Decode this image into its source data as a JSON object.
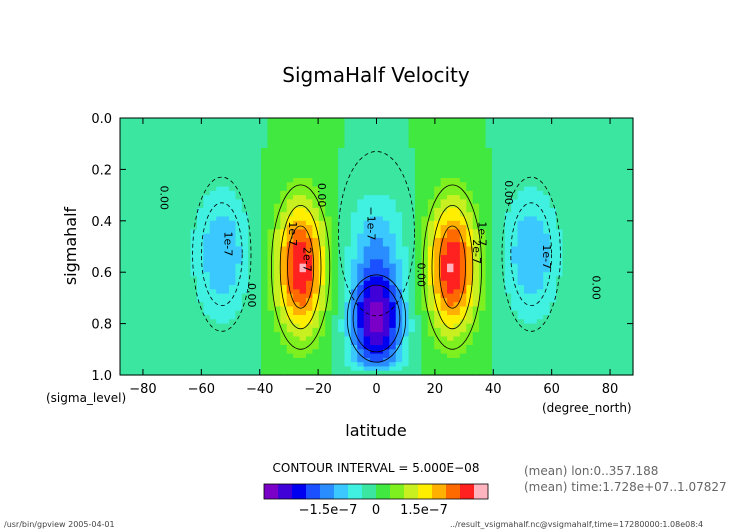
{
  "chart_data": {
    "type": "contour",
    "title": "SigmaHalf Velocity",
    "xlabel": "latitude",
    "ylabel": "sigmahalf",
    "x_unit": "(degree_north)",
    "y_unit": "(sigma_level)",
    "xlim": [
      -87.86,
      87.86
    ],
    "ylim": [
      1.0,
      0.0
    ],
    "x_ticks": [
      -80,
      -60,
      -40,
      -20,
      0,
      20,
      40,
      60,
      80
    ],
    "y_ticks": [
      0.0,
      0.2,
      0.4,
      0.6,
      0.8,
      1.0
    ],
    "x_tick_labels": [
      "−80",
      "−60",
      "−40",
      "−20",
      "0",
      "20",
      "40",
      "60",
      "80"
    ],
    "y_tick_labels": [
      "0.0",
      "0.2",
      "0.4",
      "0.6",
      "0.8",
      "1.0"
    ],
    "contour_interval": 5e-08,
    "contour_interval_text": "CONTOUR INTERVAL = 5.000E−08",
    "contour_labels": [
      {
        "text": "0.00",
        "x": -74,
        "y": 0.31
      },
      {
        "text": "1e-7",
        "x": -52,
        "y": 0.49
      },
      {
        "text": "0.00",
        "x": -44,
        "y": 0.69
      },
      {
        "text": "1e-7",
        "x": -30,
        "y": 0.45
      },
      {
        "text": "2e-7",
        "x": -25,
        "y": 0.55
      },
      {
        "text": "0.00",
        "x": -20,
        "y": 0.3
      },
      {
        "text": "−1e-7",
        "x": -3,
        "y": 0.41
      },
      {
        "text": "0.00",
        "x": 14,
        "y": 0.61
      },
      {
        "text": "1e-7",
        "x": 35,
        "y": 0.45
      },
      {
        "text": "2e-7",
        "x": 33,
        "y": 0.52
      },
      {
        "text": "0.00",
        "x": 44,
        "y": 0.29
      },
      {
        "text": "1e-7",
        "x": 57,
        "y": 0.54
      },
      {
        "text": "0.00",
        "x": 74,
        "y": 0.66
      }
    ],
    "extrema": [
      {
        "sign": "negative",
        "lat": 0,
        "sigma": 0.8,
        "approx_value": -3.2e-07
      },
      {
        "sign": "positive",
        "lat": -26,
        "sigma": 0.6,
        "approx_value": 3e-07
      },
      {
        "sign": "positive",
        "lat": 26,
        "sigma": 0.6,
        "approx_value": 3e-07
      },
      {
        "sign": "negative",
        "lat": -53,
        "sigma": 0.55,
        "approx_value": -1.2e-07
      },
      {
        "sign": "negative",
        "lat": 53,
        "sigma": 0.55,
        "approx_value": -1.2e-07
      }
    ],
    "colorbar": {
      "range": [
        -3.5e-07,
        3.5e-07
      ],
      "tick_labels": [
        "−1.5e−7",
        "0",
        "1.5e−7"
      ],
      "tick_values": [
        -1.5e-07,
        0,
        1.5e-07
      ],
      "colors": [
        "#7a00c8",
        "#4000d8",
        "#0000f0",
        "#1a50ff",
        "#2a8dff",
        "#3ac8ff",
        "#40f0e0",
        "#3ae6a0",
        "#40e840",
        "#7ef020",
        "#c8f020",
        "#ffee00",
        "#ffb000",
        "#ff6a00",
        "#ff2020",
        "#ffb4c0"
      ]
    },
    "grid": false,
    "legend": "none"
  },
  "notes": {
    "mean_lon": "(mean) lon:0..357.188",
    "mean_time": "(mean) time:1.728e+07..1.07827"
  },
  "footer": {
    "left": "/usr/bin/gpview   2005-04-01",
    "right": "../result_vsigmahalf.nc@vsigmahalf,time=17280000:1.08e08:4"
  }
}
